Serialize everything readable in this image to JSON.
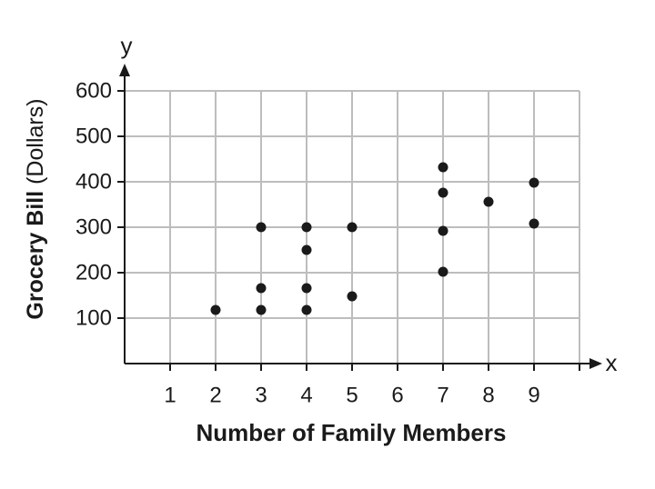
{
  "chart_data": {
    "type": "scatter",
    "xlabel": "Number of Family Members",
    "ylabel_bold": "Grocery Bill",
    "ylabel_unit": "(Dollars)",
    "x_axis_letter": "x",
    "y_axis_letter": "y",
    "xlim": [
      0,
      10
    ],
    "ylim": [
      0,
      600
    ],
    "xticks": [
      1,
      2,
      3,
      4,
      5,
      6,
      7,
      8,
      9
    ],
    "yticks": [
      100,
      200,
      300,
      400,
      500,
      600
    ],
    "grid": true,
    "color": "#1a1a1a",
    "x": [
      2,
      3,
      3,
      3,
      4,
      4,
      4,
      4,
      5,
      5,
      7,
      7,
      7,
      7,
      8,
      9,
      9
    ],
    "values": [
      118,
      118,
      166,
      300,
      118,
      166,
      250,
      300,
      148,
      300,
      202,
      292,
      376,
      432,
      356,
      308,
      398
    ]
  }
}
